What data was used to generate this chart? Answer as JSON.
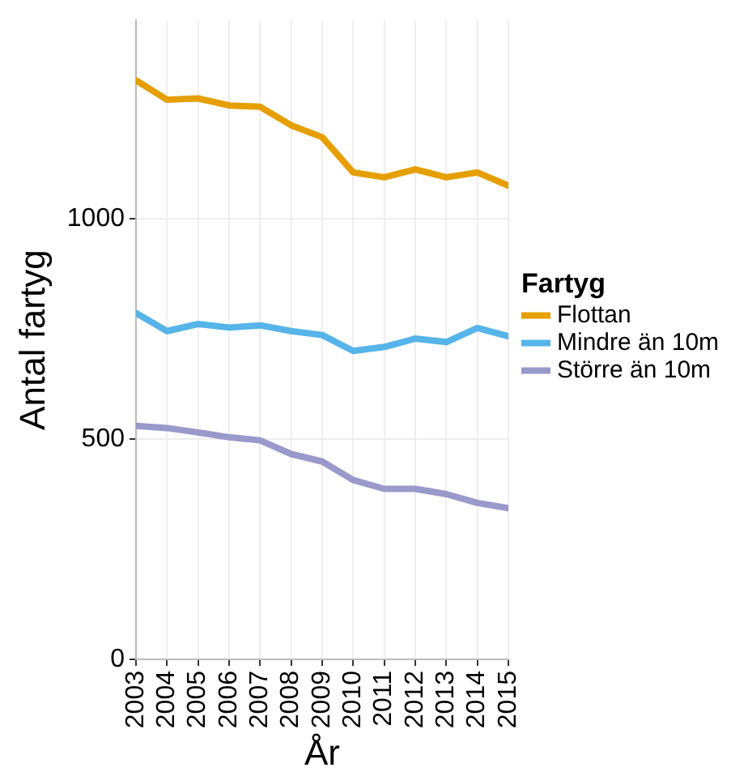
{
  "chart_data": {
    "type": "line",
    "xlabel": "År",
    "ylabel": "Antal fartyg",
    "legend_title": "Fartyg",
    "legend": "right",
    "grid": true,
    "marker": "none",
    "line_style": "solid",
    "x": [
      2003,
      2004,
      2005,
      2006,
      2007,
      2008,
      2009,
      2010,
      2011,
      2012,
      2013,
      2014,
      2015
    ],
    "xlim": [
      2003,
      2015
    ],
    "xticks": [
      2003,
      2004,
      2005,
      2006,
      2007,
      2008,
      2009,
      2010,
      2011,
      2012,
      2013,
      2014,
      2015
    ],
    "ylim": [
      0,
      1450
    ],
    "yticks": [
      0,
      500,
      1000
    ],
    "series": [
      {
        "name": "Flottan",
        "color": "#e69f00",
        "values": [
          1314,
          1270,
          1273,
          1257,
          1254,
          1212,
          1185,
          1105,
          1094,
          1112,
          1094,
          1105,
          1075
        ]
      },
      {
        "name": "Mindre än 10m",
        "color": "#56b4e9",
        "values": [
          786,
          745,
          761,
          753,
          758,
          745,
          736,
          700,
          709,
          728,
          720,
          752,
          733
        ]
      },
      {
        "name": "Större än 10m",
        "color": "#9999cc",
        "values": [
          530,
          525,
          515,
          504,
          497,
          466,
          449,
          407,
          387,
          387,
          375,
          355,
          343
        ]
      }
    ]
  }
}
